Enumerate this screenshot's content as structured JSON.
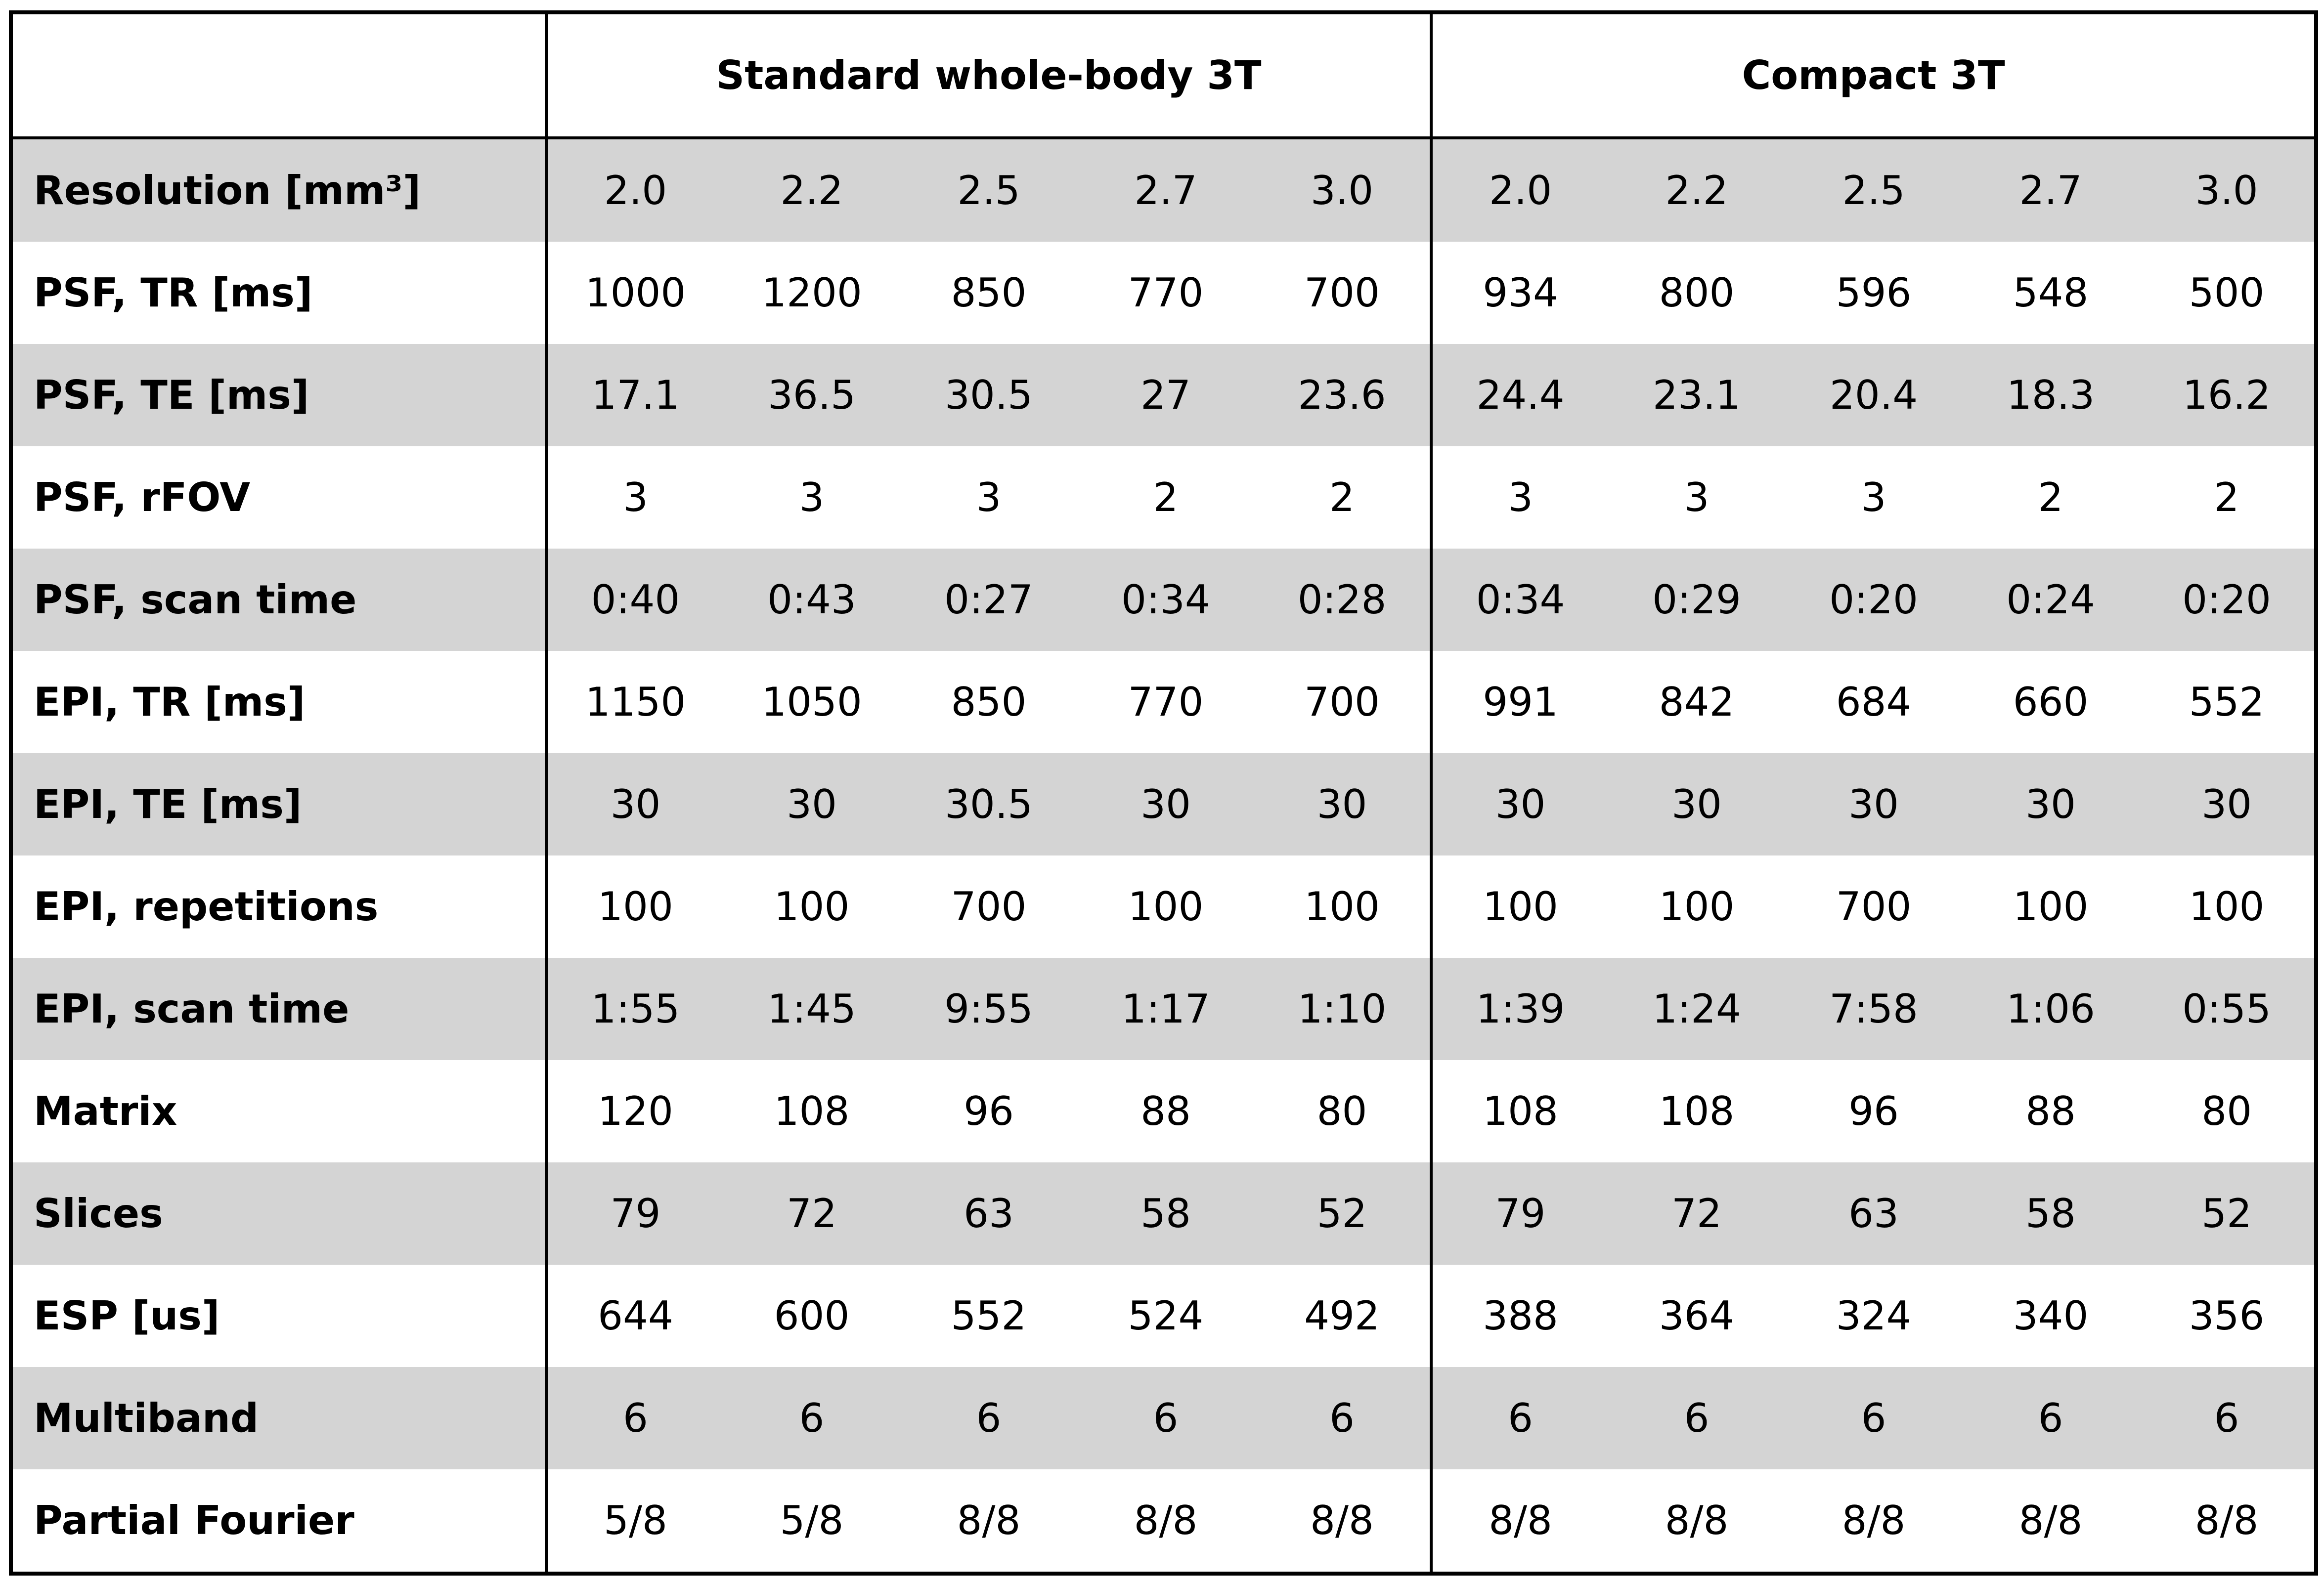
{
  "table": {
    "groups": [
      "Standard whole-body 3T",
      "Compact 3T"
    ],
    "rows": [
      [
        "Resolution [mm³]",
        "2.0",
        "2.2",
        "2.5",
        "2.7",
        "3.0",
        "2.0",
        "2.2",
        "2.5",
        "2.7",
        "3.0"
      ],
      [
        "PSF, TR [ms]",
        "1000",
        "1200",
        "850",
        "770",
        "700",
        "934",
        "800",
        "596",
        "548",
        "500"
      ],
      [
        "PSF, TE [ms]",
        "17.1",
        "36.5",
        "30.5",
        "27",
        "23.6",
        "24.4",
        "23.1",
        "20.4",
        "18.3",
        "16.2"
      ],
      [
        "PSF, rFOV",
        "3",
        "3",
        "3",
        "2",
        "2",
        "3",
        "3",
        "3",
        "2",
        "2"
      ],
      [
        "PSF, scan time",
        "0:40",
        "0:43",
        "0:27",
        "0:34",
        "0:28",
        "0:34",
        "0:29",
        "0:20",
        "0:24",
        "0:20"
      ],
      [
        "EPI, TR [ms]",
        "1150",
        "1050",
        "850",
        "770",
        "700",
        "991",
        "842",
        "684",
        "660",
        "552"
      ],
      [
        "EPI, TE [ms]",
        "30",
        "30",
        "30.5",
        "30",
        "30",
        "30",
        "30",
        "30",
        "30",
        "30"
      ],
      [
        "EPI, repetitions",
        "100",
        "100",
        "700",
        "100",
        "100",
        "100",
        "100",
        "700",
        "100",
        "100"
      ],
      [
        "EPI, scan time",
        "1:55",
        "1:45",
        "9:55",
        "1:17",
        "1:10",
        "1:39",
        "1:24",
        "7:58",
        "1:06",
        "0:55"
      ],
      [
        "Matrix",
        "120",
        "108",
        "96",
        "88",
        "80",
        "108",
        "108",
        "96",
        "88",
        "80"
      ],
      [
        "Slices",
        "79",
        "72",
        "63",
        "58",
        "52",
        "79",
        "72",
        "63",
        "58",
        "52"
      ],
      [
        "ESP [us]",
        "644",
        "600",
        "552",
        "524",
        "492",
        "388",
        "364",
        "324",
        "340",
        "356"
      ],
      [
        "Multiband",
        "6",
        "6",
        "6",
        "6",
        "6",
        "6",
        "6",
        "6",
        "6",
        "6"
      ],
      [
        "Partial Fourier",
        "5/8",
        "5/8",
        "8/8",
        "8/8",
        "8/8",
        "8/8",
        "8/8",
        "8/8",
        "8/8",
        "8/8"
      ]
    ]
  }
}
